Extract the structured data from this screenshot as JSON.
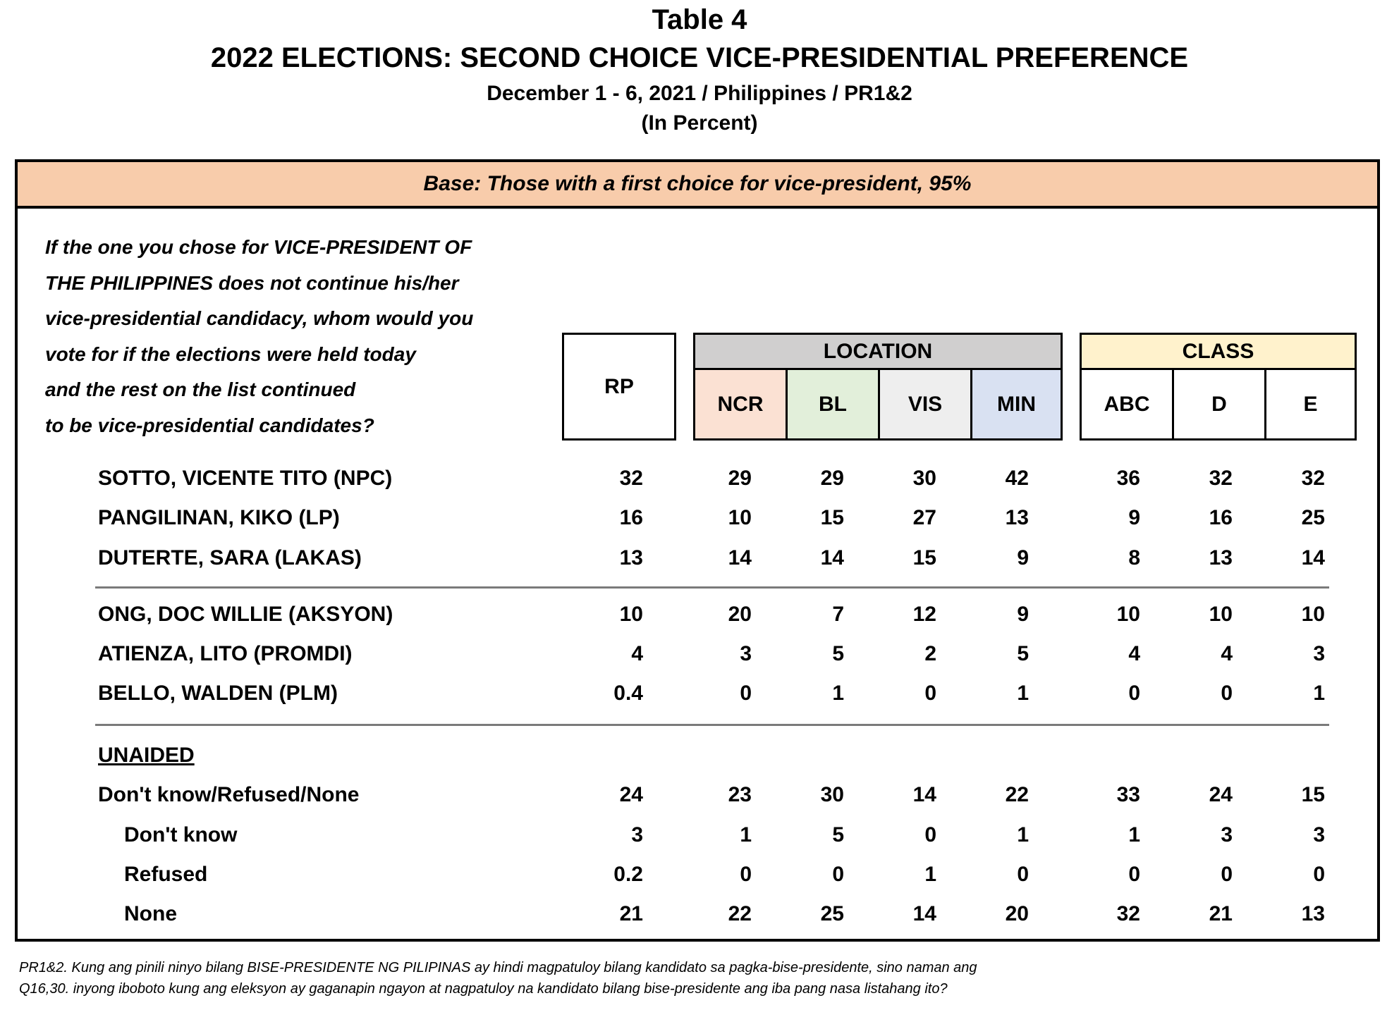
{
  "header": {
    "table_no": "Table 4",
    "title": "2022 ELECTIONS: SECOND CHOICE VICE-PRESIDENTIAL PREFERENCE",
    "subtitle": "December 1 - 6, 2021 / Philippines / PR1&2",
    "unit": "(In Percent)"
  },
  "base": "Base: Those with a first choice for vice-president, 95%",
  "question": [
    "If the one you chose for VICE-PRESIDENT OF",
    "THE PHILIPPINES does not continue his/her",
    "vice-presidential candidacy, whom would you",
    "vote for if the elections were held today",
    "and the rest on the list continued",
    "to be vice-presidential candidates?"
  ],
  "columns": {
    "rp": "RP",
    "location_label": "LOCATION",
    "location": [
      "NCR",
      "BL",
      "VIS",
      "MIN"
    ],
    "class_label": "CLASS",
    "class": [
      "ABC",
      "D",
      "E"
    ]
  },
  "colors": {
    "base_band": "#f8ccab",
    "location_header": "#d0cfcf",
    "ncr": "#fbe1d3",
    "bl": "#e2efda",
    "vis": "#eeeeee",
    "min": "#d9e1f2",
    "class_header": "#fff2cc"
  },
  "rows": [
    {
      "label": "SOTTO, VICENTE TITO (NPC)",
      "values": [
        "32",
        "29",
        "29",
        "30",
        "42",
        "36",
        "32",
        "32"
      ]
    },
    {
      "label": "PANGILINAN, KIKO (LP)",
      "values": [
        "16",
        "10",
        "15",
        "27",
        "13",
        "9",
        "16",
        "25"
      ]
    },
    {
      "label": "DUTERTE, SARA (LAKAS)",
      "values": [
        "13",
        "14",
        "14",
        "15",
        "9",
        "8",
        "13",
        "14"
      ]
    },
    {
      "label": "ONG, DOC WILLIE (AKSYON)",
      "values": [
        "10",
        "20",
        "7",
        "12",
        "9",
        "10",
        "10",
        "10"
      ]
    },
    {
      "label": "ATIENZA, LITO (PROMDI)",
      "values": [
        "4",
        "3",
        "5",
        "2",
        "5",
        "4",
        "4",
        "3"
      ]
    },
    {
      "label": "BELLO, WALDEN (PLM)",
      "values": [
        "0.4",
        "0",
        "1",
        "0",
        "1",
        "0",
        "0",
        "1"
      ]
    },
    {
      "label": "Don't know/Refused/None",
      "values": [
        "24",
        "23",
        "30",
        "14",
        "22",
        "33",
        "24",
        "15"
      ]
    },
    {
      "label": "Don't know",
      "values": [
        "3",
        "1",
        "5",
        "0",
        "1",
        "1",
        "3",
        "3"
      ]
    },
    {
      "label": "Refused",
      "values": [
        "0.2",
        "0",
        "0",
        "1",
        "0",
        "0",
        "0",
        "0"
      ]
    },
    {
      "label": "None",
      "values": [
        "21",
        "22",
        "25",
        "14",
        "20",
        "32",
        "21",
        "13"
      ]
    }
  ],
  "unaided_label": "UNAIDED",
  "footnote": [
    "PR1&2. Kung ang pinili ninyo bilang BISE-PRESIDENTE NG PILIPINAS ay hindi magpatuloy bilang kandidato sa pagka-bise-presidente, sino naman ang",
    "Q16,30. inyong iboboto kung ang eleksyon ay gaganapin ngayon at nagpatuloy na kandidato bilang bise-presidente ang iba pang nasa listahang ito?"
  ]
}
